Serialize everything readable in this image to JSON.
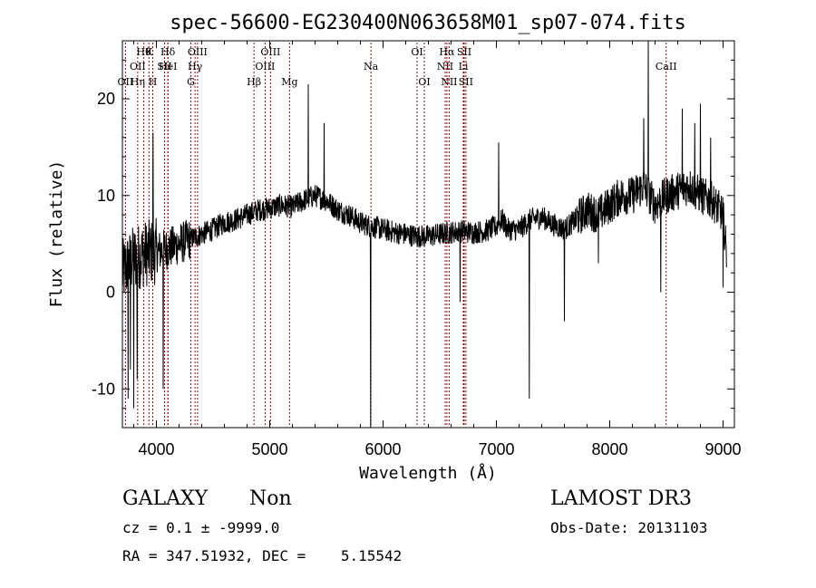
{
  "chart_data": {
    "type": "line",
    "title": "spec-56600-EG230400N063658M01_sp07-074.fits",
    "xlabel": "Wavelength (Å)",
    "ylabel": "Flux (relative)",
    "xlim": [
      3700,
      9100
    ],
    "ylim": [
      -14,
      26
    ],
    "xticks": [
      4000,
      5000,
      6000,
      7000,
      8000,
      9000
    ],
    "yticks": [
      -10,
      0,
      10,
      20
    ],
    "line_color": "#000000",
    "marker_color": "#aa0000",
    "series_anchors": {
      "x": [
        3700,
        3800,
        3900,
        4000,
        4100,
        4200,
        4300,
        4400,
        4500,
        4600,
        4700,
        4800,
        4900,
        5000,
        5100,
        5200,
        5300,
        5400,
        5500,
        5600,
        5700,
        5800,
        5900,
        6000,
        6100,
        6200,
        6300,
        6400,
        6500,
        6600,
        6700,
        6800,
        6900,
        7000,
        7050,
        7100,
        7200,
        7300,
        7400,
        7500,
        7600,
        7700,
        7800,
        7900,
        8000,
        8100,
        8200,
        8300,
        8400,
        8500,
        8600,
        8700,
        8800,
        8900,
        9000,
        9030
      ],
      "y": [
        2,
        3.5,
        4,
        4.2,
        4.5,
        5,
        5.5,
        6,
        6.5,
        7.2,
        7.5,
        8,
        8.5,
        8.7,
        9,
        8.8,
        9.5,
        10,
        9.5,
        8.5,
        8,
        7.2,
        6.8,
        6.5,
        6.2,
        6,
        5.8,
        5.8,
        6,
        6.2,
        6.3,
        6.2,
        6.3,
        6.8,
        7.5,
        6.5,
        6.5,
        7.5,
        7.8,
        7,
        6.5,
        7.5,
        8.5,
        8,
        9,
        10,
        10,
        11,
        9,
        10,
        10.5,
        11,
        10,
        9.5,
        8,
        4
      ]
    },
    "series_features": {
      "x": [
        3750,
        3770,
        3800,
        3830,
        3970,
        4060,
        5340,
        5480,
        5890,
        6680,
        7020,
        7290,
        7600,
        7900,
        8300,
        8340,
        8450,
        8640,
        8750,
        8800,
        8890,
        9000
      ],
      "y": [
        -11,
        -8,
        -12,
        -9,
        16.5,
        -10,
        21.5,
        17.5,
        -14,
        -1,
        15.5,
        -11,
        -3,
        3,
        18,
        28,
        0,
        19,
        17.5,
        19.5,
        16,
        0.5
      ]
    },
    "lines": [
      {
        "wavelength": 3727,
        "labels": [
          {
            "text": "OII",
            "row": 3
          }
        ]
      },
      {
        "wavelength": 3835,
        "labels": [
          {
            "text": "OII",
            "row": 2
          },
          {
            "text": "Hη",
            "row": 3
          }
        ]
      },
      {
        "wavelength": 3889,
        "labels": [
          {
            "text": "Hθ",
            "row": 1
          }
        ]
      },
      {
        "wavelength": 3934,
        "labels": [
          {
            "text": "K",
            "row": 1
          }
        ]
      },
      {
        "wavelength": 3968,
        "labels": [
          {
            "text": "H",
            "row": 3
          }
        ]
      },
      {
        "wavelength": 4102,
        "labels": [
          {
            "text": "HeI",
            "row": 2
          }
        ]
      },
      {
        "wavelength": 4072,
        "labels": [
          {
            "text": "SII",
            "row": 2
          }
        ]
      },
      {
        "wavelength": 4101,
        "labels": [
          {
            "text": "Hδ",
            "row": 1
          }
        ]
      },
      {
        "wavelength": 4304,
        "labels": [
          {
            "text": "G",
            "row": 3
          }
        ]
      },
      {
        "wavelength": 4341,
        "labels": [
          {
            "text": "Hγ",
            "row": 2
          }
        ]
      },
      {
        "wavelength": 4363,
        "labels": [
          {
            "text": "OIII",
            "row": 1
          }
        ]
      },
      {
        "wavelength": 4861,
        "labels": [
          {
            "text": "Hβ",
            "row": 3
          }
        ]
      },
      {
        "wavelength": 4959,
        "labels": [
          {
            "text": "OIII",
            "row": 2
          }
        ]
      },
      {
        "wavelength": 5007,
        "labels": [
          {
            "text": "OIII",
            "row": 1
          }
        ]
      },
      {
        "wavelength": 5175,
        "labels": [
          {
            "text": "Mg",
            "row": 3
          }
        ]
      },
      {
        "wavelength": 5893,
        "labels": [
          {
            "text": "Na",
            "row": 2
          }
        ]
      },
      {
        "wavelength": 6300,
        "labels": [
          {
            "text": "OI",
            "row": 1
          }
        ]
      },
      {
        "wavelength": 6364,
        "labels": [
          {
            "text": "OI",
            "row": 3
          }
        ]
      },
      {
        "wavelength": 6548,
        "labels": [
          {
            "text": "NII",
            "row": 2
          }
        ]
      },
      {
        "wavelength": 6563,
        "labels": [
          {
            "text": "Hα",
            "row": 1
          }
        ]
      },
      {
        "wavelength": 6583,
        "labels": [
          {
            "text": "NII",
            "row": 3
          }
        ]
      },
      {
        "wavelength": 6708,
        "labels": [
          {
            "text": "Li",
            "row": 2
          }
        ]
      },
      {
        "wavelength": 6716,
        "labels": [
          {
            "text": "SII",
            "row": 1
          }
        ]
      },
      {
        "wavelength": 6731,
        "labels": [
          {
            "text": "SII",
            "row": 3
          }
        ]
      },
      {
        "wavelength": 8498,
        "labels": [
          {
            "text": "CaII",
            "row": 2
          }
        ]
      }
    ]
  },
  "info": {
    "class": "GALAXY",
    "subclass": "Non",
    "survey": "LAMOST DR3",
    "cz": "cz = 0.1 ± -9999.0",
    "obs_date": "Obs-Date: 20131103",
    "coords": "RA = 347.51932, DEC =    5.15542"
  }
}
